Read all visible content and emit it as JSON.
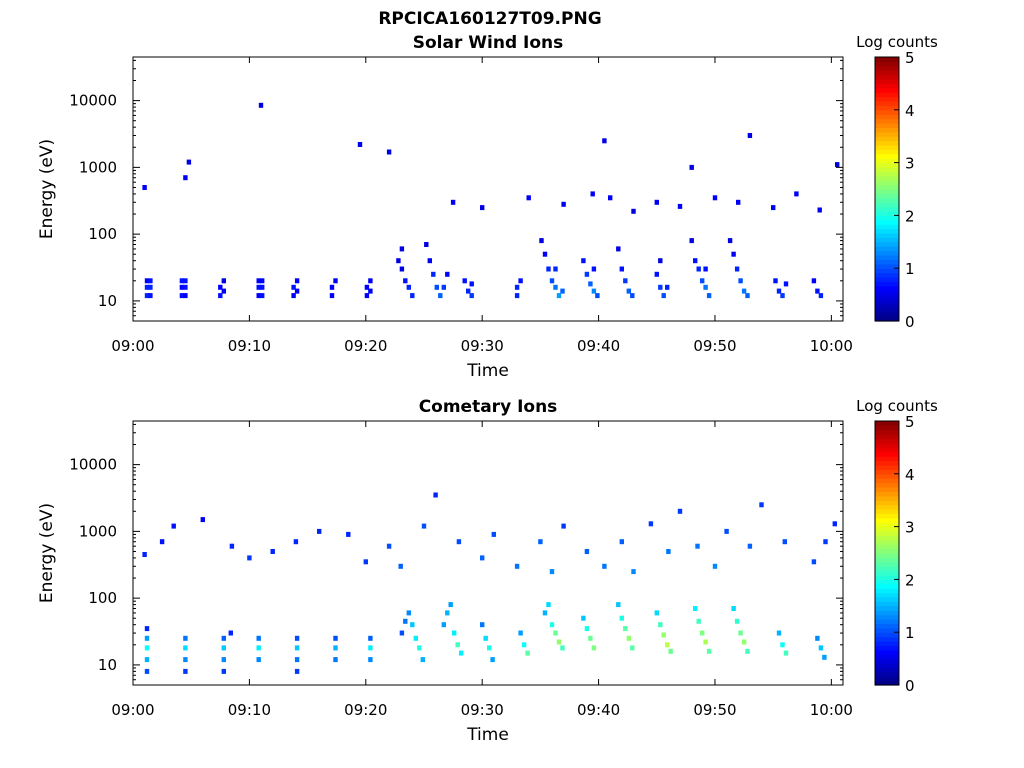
{
  "figure": {
    "title": "RPCICA160127T09.PNG",
    "colormap": [
      "#00007f",
      "#0000ff",
      "#007fff",
      "#00ffff",
      "#7fff7f",
      "#ffff00",
      "#ff7f00",
      "#ff0000",
      "#7f0000"
    ]
  },
  "chart_data": [
    {
      "type": "heatmap",
      "title": "Solar Wind Ions",
      "xlabel": "Time",
      "ylabel": "Energy (eV)",
      "y_scale": "log",
      "ylim": [
        5,
        45000
      ],
      "xlim": [
        "09:00",
        "10:01"
      ],
      "x_ticks": [
        "09:00",
        "09:10",
        "09:20",
        "09:30",
        "09:40",
        "09:50",
        "10:00"
      ],
      "y_ticks": [
        "10",
        "100",
        "1000",
        "10000"
      ],
      "colorbar": {
        "label": "Log counts",
        "range": [
          0,
          5
        ],
        "ticks": [
          "0",
          "1",
          "2",
          "3",
          "4",
          "5"
        ]
      },
      "grid": false,
      "cells": [
        [
          1.2,
          12,
          0.8
        ],
        [
          1.2,
          16,
          0.8
        ],
        [
          1.2,
          20,
          0.6
        ],
        [
          1.5,
          12,
          0.7
        ],
        [
          1.5,
          16,
          0.8
        ],
        [
          1.5,
          20,
          0.7
        ],
        [
          4.2,
          12,
          0.7
        ],
        [
          4.2,
          16,
          0.6
        ],
        [
          4.2,
          20,
          0.7
        ],
        [
          4.5,
          12,
          0.6
        ],
        [
          4.5,
          16,
          0.7
        ],
        [
          4.5,
          20,
          0.7
        ],
        [
          7.5,
          12,
          0.7
        ],
        [
          7.5,
          16,
          0.6
        ],
        [
          7.8,
          14,
          0.6
        ],
        [
          7.8,
          20,
          0.5
        ],
        [
          10.8,
          12,
          0.6
        ],
        [
          10.8,
          16,
          0.7
        ],
        [
          10.8,
          20,
          0.6
        ],
        [
          11.1,
          12,
          0.7
        ],
        [
          11.1,
          16,
          0.7
        ],
        [
          11.1,
          20,
          0.6
        ],
        [
          13.8,
          12,
          0.6
        ],
        [
          13.8,
          16,
          0.7
        ],
        [
          14.1,
          20,
          0.6
        ],
        [
          14.1,
          14,
          0.6
        ],
        [
          17.1,
          12,
          0.6
        ],
        [
          17.1,
          16,
          0.6
        ],
        [
          17.4,
          20,
          0.6
        ],
        [
          20.1,
          12,
          0.6
        ],
        [
          20.1,
          16,
          0.6
        ],
        [
          20.4,
          20,
          0.6
        ],
        [
          20.4,
          14,
          0.6
        ],
        [
          22.8,
          40,
          0.5
        ],
        [
          23.1,
          30,
          0.5
        ],
        [
          23.4,
          20,
          0.7
        ],
        [
          23.7,
          16,
          0.8
        ],
        [
          24.0,
          12,
          0.8
        ],
        [
          23.1,
          60,
          0.5
        ],
        [
          25.5,
          40,
          0.6
        ],
        [
          25.8,
          25,
          0.8
        ],
        [
          26.1,
          16,
          1.0
        ],
        [
          26.4,
          12,
          1.1
        ],
        [
          26.7,
          16,
          0.9
        ],
        [
          25.2,
          70,
          0.5
        ],
        [
          27.0,
          25,
          0.6
        ],
        [
          28.5,
          20,
          0.7
        ],
        [
          28.8,
          14,
          0.8
        ],
        [
          29.1,
          12,
          0.9
        ],
        [
          29.1,
          18,
          0.7
        ],
        [
          33.0,
          12,
          0.8
        ],
        [
          33.0,
          16,
          0.8
        ],
        [
          33.3,
          20,
          0.7
        ],
        [
          35.1,
          80,
          0.5
        ],
        [
          35.4,
          50,
          0.6
        ],
        [
          35.7,
          30,
          0.8
        ],
        [
          36.0,
          20,
          1.0
        ],
        [
          36.3,
          16,
          1.2
        ],
        [
          36.6,
          12,
          1.4
        ],
        [
          36.9,
          14,
          1.1
        ],
        [
          36.3,
          30,
          0.8
        ],
        [
          38.7,
          40,
          0.7
        ],
        [
          39.0,
          25,
          0.9
        ],
        [
          39.3,
          18,
          1.1
        ],
        [
          39.6,
          14,
          1.3
        ],
        [
          39.9,
          12,
          1.0
        ],
        [
          39.6,
          30,
          0.7
        ],
        [
          41.7,
          60,
          0.5
        ],
        [
          42.0,
          30,
          0.7
        ],
        [
          42.3,
          20,
          0.9
        ],
        [
          42.6,
          14,
          1.1
        ],
        [
          42.9,
          12,
          1.0
        ],
        [
          45.0,
          25,
          0.7
        ],
        [
          45.3,
          16,
          0.9
        ],
        [
          45.6,
          12,
          1.0
        ],
        [
          45.9,
          16,
          0.8
        ],
        [
          45.3,
          40,
          0.5
        ],
        [
          48.0,
          80,
          0.5
        ],
        [
          48.3,
          40,
          0.7
        ],
        [
          48.6,
          30,
          0.8
        ],
        [
          48.9,
          20,
          1.0
        ],
        [
          49.2,
          16,
          1.2
        ],
        [
          49.5,
          12,
          1.1
        ],
        [
          49.2,
          30,
          0.7
        ],
        [
          51.3,
          80,
          0.5
        ],
        [
          51.6,
          50,
          0.6
        ],
        [
          51.9,
          30,
          0.8
        ],
        [
          52.2,
          20,
          1.0
        ],
        [
          52.5,
          14,
          1.2
        ],
        [
          52.8,
          12,
          1.1
        ],
        [
          55.2,
          20,
          0.7
        ],
        [
          55.5,
          14,
          0.8
        ],
        [
          55.8,
          12,
          0.9
        ],
        [
          56.1,
          18,
          0.7
        ],
        [
          58.5,
          20,
          0.6
        ],
        [
          58.8,
          14,
          0.7
        ],
        [
          59.1,
          12,
          0.8
        ],
        [
          1.0,
          500,
          0.6
        ],
        [
          4.5,
          700,
          0.6
        ],
        [
          4.8,
          1200,
          0.5
        ],
        [
          11.0,
          8500,
          0.5
        ],
        [
          19.5,
          2200,
          0.5
        ],
        [
          22.0,
          1700,
          0.5
        ],
        [
          27.5,
          300,
          0.6
        ],
        [
          30.0,
          250,
          0.5
        ],
        [
          34.0,
          350,
          0.6
        ],
        [
          37.0,
          280,
          0.6
        ],
        [
          39.5,
          400,
          0.6
        ],
        [
          41.0,
          350,
          0.6
        ],
        [
          43.0,
          220,
          0.5
        ],
        [
          45.0,
          300,
          0.6
        ],
        [
          47.0,
          260,
          0.6
        ],
        [
          48.0,
          1000,
          0.5
        ],
        [
          50.0,
          350,
          0.6
        ],
        [
          52.0,
          300,
          0.6
        ],
        [
          53.0,
          3000,
          0.5
        ],
        [
          55.0,
          250,
          0.6
        ],
        [
          57.0,
          400,
          0.6
        ],
        [
          59.0,
          230,
          0.6
        ],
        [
          60.5,
          1100,
          0.5
        ],
        [
          40.5,
          2500,
          0.5
        ]
      ]
    },
    {
      "type": "heatmap",
      "title": "Cometary Ions",
      "xlabel": "Time",
      "ylabel": "Energy (eV)",
      "y_scale": "log",
      "ylim": [
        5,
        45000
      ],
      "xlim": [
        "09:00",
        "10:01"
      ],
      "x_ticks": [
        "09:00",
        "09:10",
        "09:20",
        "09:30",
        "09:40",
        "09:50",
        "10:00"
      ],
      "y_ticks": [
        "10",
        "100",
        "1000",
        "10000"
      ],
      "colorbar": {
        "label": "Log counts",
        "range": [
          0,
          5
        ],
        "ticks": [
          "0",
          "1",
          "2",
          "3",
          "4",
          "5"
        ]
      },
      "grid": false,
      "cells": [
        [
          1.2,
          8,
          1.0
        ],
        [
          1.2,
          12,
          1.5
        ],
        [
          1.2,
          18,
          1.9
        ],
        [
          1.2,
          25,
          1.4
        ],
        [
          1.2,
          35,
          0.8
        ],
        [
          4.5,
          8,
          0.9
        ],
        [
          4.5,
          12,
          1.3
        ],
        [
          4.5,
          18,
          1.7
        ],
        [
          4.5,
          25,
          1.2
        ],
        [
          7.8,
          8,
          0.9
        ],
        [
          7.8,
          12,
          1.3
        ],
        [
          7.8,
          18,
          1.6
        ],
        [
          7.8,
          25,
          1.1
        ],
        [
          8.4,
          30,
          0.8
        ],
        [
          10.8,
          12,
          1.3
        ],
        [
          10.8,
          18,
          1.8
        ],
        [
          10.8,
          25,
          1.2
        ],
        [
          14.1,
          8,
          0.9
        ],
        [
          14.1,
          12,
          1.2
        ],
        [
          14.1,
          18,
          1.6
        ],
        [
          14.1,
          25,
          1.0
        ],
        [
          17.4,
          12,
          1.2
        ],
        [
          17.4,
          18,
          1.5
        ],
        [
          17.4,
          25,
          1.0
        ],
        [
          20.4,
          12,
          1.3
        ],
        [
          20.4,
          18,
          1.8
        ],
        [
          20.4,
          25,
          1.1
        ],
        [
          23.1,
          30,
          1.0
        ],
        [
          23.4,
          45,
          1.2
        ],
        [
          23.7,
          60,
          1.3
        ],
        [
          24.0,
          40,
          1.6
        ],
        [
          24.3,
          25,
          1.8
        ],
        [
          24.6,
          18,
          2.0
        ],
        [
          24.9,
          12,
          1.5
        ],
        [
          26.7,
          40,
          1.4
        ],
        [
          27.0,
          60,
          1.5
        ],
        [
          27.3,
          80,
          1.4
        ],
        [
          27.6,
          30,
          1.8
        ],
        [
          27.9,
          20,
          2.2
        ],
        [
          28.2,
          15,
          1.8
        ],
        [
          30.0,
          40,
          1.2
        ],
        [
          30.3,
          25,
          1.7
        ],
        [
          30.6,
          18,
          2.0
        ],
        [
          30.9,
          12,
          1.4
        ],
        [
          33.3,
          30,
          1.4
        ],
        [
          33.6,
          20,
          1.9
        ],
        [
          33.9,
          15,
          2.3
        ],
        [
          35.4,
          60,
          1.5
        ],
        [
          35.7,
          80,
          1.7
        ],
        [
          36.0,
          40,
          2.0
        ],
        [
          36.3,
          30,
          2.4
        ],
        [
          36.6,
          22,
          2.6
        ],
        [
          36.9,
          18,
          2.2
        ],
        [
          38.7,
          50,
          1.6
        ],
        [
          39.0,
          35,
          2.0
        ],
        [
          39.3,
          25,
          2.4
        ],
        [
          39.6,
          18,
          2.5
        ],
        [
          41.7,
          80,
          1.6
        ],
        [
          42.0,
          50,
          2.0
        ],
        [
          42.3,
          35,
          2.3
        ],
        [
          42.6,
          25,
          2.6
        ],
        [
          42.9,
          18,
          2.3
        ],
        [
          45.0,
          60,
          1.7
        ],
        [
          45.3,
          40,
          2.2
        ],
        [
          45.6,
          28,
          2.6
        ],
        [
          45.9,
          20,
          2.8
        ],
        [
          46.2,
          16,
          2.4
        ],
        [
          48.3,
          70,
          1.8
        ],
        [
          48.6,
          45,
          2.2
        ],
        [
          48.9,
          30,
          2.5
        ],
        [
          49.2,
          22,
          2.7
        ],
        [
          49.5,
          16,
          2.3
        ],
        [
          51.6,
          70,
          1.7
        ],
        [
          51.9,
          45,
          2.1
        ],
        [
          52.2,
          30,
          2.4
        ],
        [
          52.5,
          22,
          2.6
        ],
        [
          52.8,
          16,
          2.2
        ],
        [
          55.5,
          30,
          1.5
        ],
        [
          55.8,
          20,
          1.9
        ],
        [
          56.1,
          15,
          2.2
        ],
        [
          58.8,
          25,
          1.3
        ],
        [
          59.1,
          18,
          1.6
        ],
        [
          59.4,
          13,
          1.4
        ],
        [
          1.0,
          450,
          0.8
        ],
        [
          2.5,
          700,
          0.7
        ],
        [
          3.5,
          1200,
          0.7
        ],
        [
          6.0,
          1500,
          0.6
        ],
        [
          8.5,
          600,
          0.8
        ],
        [
          10.0,
          400,
          0.9
        ],
        [
          12.0,
          500,
          0.8
        ],
        [
          14.0,
          700,
          0.8
        ],
        [
          16.0,
          1000,
          0.8
        ],
        [
          18.5,
          900,
          0.8
        ],
        [
          20.0,
          350,
          0.9
        ],
        [
          22.0,
          600,
          1.0
        ],
        [
          23.0,
          300,
          1.1
        ],
        [
          25.0,
          1200,
          1.0
        ],
        [
          26.0,
          3500,
          0.8
        ],
        [
          28.0,
          700,
          1.0
        ],
        [
          30.0,
          400,
          1.1
        ],
        [
          31.0,
          900,
          1.0
        ],
        [
          33.0,
          300,
          1.2
        ],
        [
          35.0,
          700,
          1.1
        ],
        [
          36.0,
          250,
          1.3
        ],
        [
          37.0,
          1200,
          0.9
        ],
        [
          39.0,
          500,
          1.1
        ],
        [
          40.5,
          300,
          1.2
        ],
        [
          42.0,
          700,
          1.1
        ],
        [
          43.0,
          250,
          1.3
        ],
        [
          44.5,
          1300,
          0.9
        ],
        [
          46.0,
          500,
          1.2
        ],
        [
          47.0,
          2000,
          0.9
        ],
        [
          48.5,
          600,
          1.2
        ],
        [
          50.0,
          300,
          1.3
        ],
        [
          51.0,
          1000,
          1.0
        ],
        [
          53.0,
          600,
          1.1
        ],
        [
          54.0,
          2500,
          0.9
        ],
        [
          56.0,
          700,
          1.0
        ],
        [
          58.5,
          350,
          1.0
        ],
        [
          59.5,
          700,
          0.9
        ],
        [
          60.3,
          1300,
          0.8
        ]
      ]
    }
  ]
}
